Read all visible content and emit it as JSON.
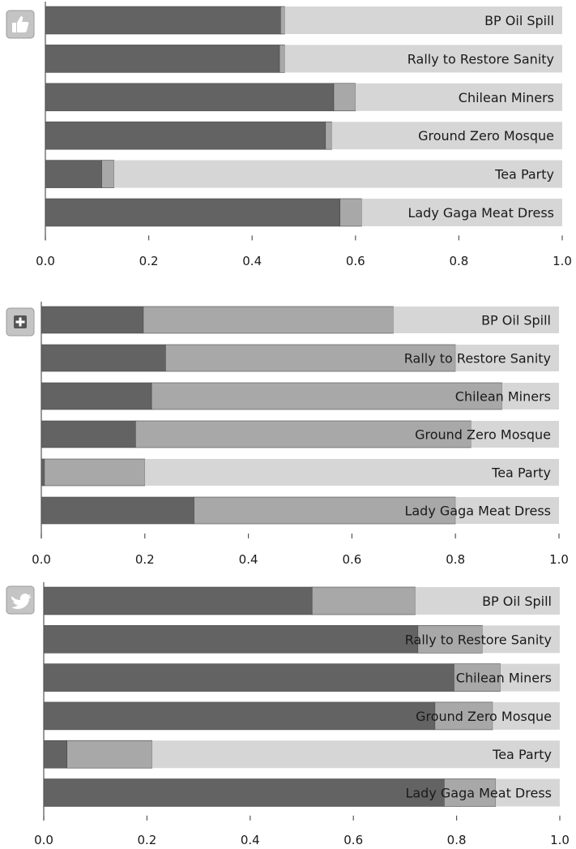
{
  "colors": {
    "dark": "#636363",
    "mid": "#a8a8a8",
    "light": "#d6d6d6",
    "axis": "#555555",
    "icon_bg": "#c4c4c4",
    "icon_fg": "#ffffff"
  },
  "chart_data": [
    {
      "type": "bar",
      "orientation": "horizontal",
      "stacked": true,
      "icon": "thumbs-up-icon",
      "categories": [
        "BP Oil Spill",
        "Rally to Restore Sanity",
        "Chilean Miners",
        "Ground Zero Mosque",
        "Tea Party",
        "Lady Gaga Meat Dress"
      ],
      "series": [
        {
          "values": [
            0.455,
            0.453,
            0.558,
            0.542,
            0.109,
            0.57
          ]
        },
        {
          "values": [
            0.008,
            0.01,
            0.042,
            0.012,
            0.024,
            0.042
          ]
        },
        {
          "values": [
            0.537,
            0.537,
            0.4,
            0.446,
            0.867,
            0.388
          ]
        }
      ],
      "xlim": [
        0,
        1.0
      ],
      "xticks": [
        "0.0",
        "0.2",
        "0.4",
        "0.6",
        "0.8",
        "1.0"
      ],
      "grid": false
    },
    {
      "type": "bar",
      "orientation": "horizontal",
      "stacked": true,
      "icon": "plus-icon",
      "categories": [
        "BP Oil Spill",
        "Rally to Restore Sanity",
        "Chilean Miners",
        "Ground Zero Mosque",
        "Tea Party",
        "Lady Gaga Meat Dress"
      ],
      "series": [
        {
          "values": [
            0.197,
            0.24,
            0.213,
            0.182,
            0.006,
            0.295
          ]
        },
        {
          "values": [
            0.483,
            0.56,
            0.677,
            0.648,
            0.194,
            0.505
          ]
        },
        {
          "values": [
            0.32,
            0.2,
            0.11,
            0.17,
            0.8,
            0.2
          ]
        }
      ],
      "xlim": [
        0,
        1.0
      ],
      "xticks": [
        "0.0",
        "0.2",
        "0.4",
        "0.6",
        "0.8",
        "1.0"
      ],
      "grid": false
    },
    {
      "type": "bar",
      "orientation": "horizontal",
      "stacked": true,
      "icon": "bird-icon",
      "categories": [
        "BP Oil Spill",
        "Rally to Restore Sanity",
        "Chilean Miners",
        "Ground Zero Mosque",
        "Tea Party",
        "Lady Gaga Meat Dress"
      ],
      "series": [
        {
          "values": [
            0.52,
            0.725,
            0.795,
            0.758,
            0.045,
            0.776
          ]
        },
        {
          "values": [
            0.2,
            0.125,
            0.09,
            0.112,
            0.165,
            0.1
          ]
        },
        {
          "values": [
            0.28,
            0.15,
            0.115,
            0.13,
            0.79,
            0.124
          ]
        }
      ],
      "xlim": [
        0,
        1.0
      ],
      "xticks": [
        "0.0",
        "0.2",
        "0.4",
        "0.6",
        "0.8",
        "1.0"
      ],
      "grid": false
    }
  ]
}
